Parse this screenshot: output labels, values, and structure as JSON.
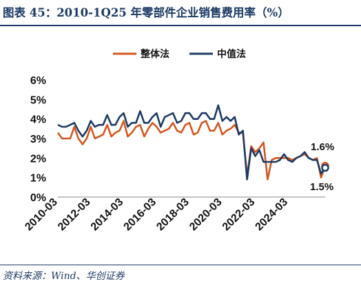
{
  "title": "图表 45：2010-1Q25 年零部件企业销售费用率（%）",
  "source": "资料来源：Wind、华创证券",
  "chart_data": {
    "type": "line",
    "title": "2010-1Q25 年零部件企业销售费用率（%）",
    "xlabel": "",
    "ylabel": "",
    "ylim": [
      0,
      6
    ],
    "yticks": [
      "0%",
      "1%",
      "2%",
      "3%",
      "4%",
      "5%",
      "6%"
    ],
    "xticks": [
      "2010-03",
      "2012-03",
      "2014-03",
      "2016-03",
      "2018-03",
      "2020-03",
      "2022-03",
      "2024-03"
    ],
    "grid": false,
    "legend_position": "top",
    "x_start": "2010-03",
    "x_frequency": "quarterly",
    "series": [
      {
        "name": "整体法",
        "color": "#d4561e",
        "values": [
          3.3,
          3.0,
          3.0,
          3.0,
          3.6,
          3.0,
          2.7,
          3.0,
          3.6,
          3.0,
          3.1,
          3.2,
          3.7,
          3.1,
          3.3,
          3.4,
          3.9,
          3.1,
          3.3,
          3.6,
          3.7,
          3.1,
          3.5,
          3.8,
          3.6,
          3.3,
          3.4,
          3.5,
          3.8,
          3.4,
          3.3,
          3.7,
          3.8,
          3.2,
          3.3,
          3.8,
          3.9,
          3.4,
          3.4,
          3.8,
          3.2,
          3.4,
          3.5,
          3.7,
          3.3,
          3.3,
          1.1,
          2.6,
          2.3,
          2.5,
          2.8,
          0.9,
          1.9,
          2.0,
          2.0,
          2.0,
          2.0,
          1.9,
          2.0,
          2.1,
          2.2,
          2.0,
          1.9,
          2.0,
          1.0,
          1.6
        ]
      },
      {
        "name": "中值法",
        "color": "#1b3a63",
        "values": [
          3.7,
          3.6,
          3.6,
          3.7,
          3.8,
          3.4,
          3.1,
          3.4,
          3.9,
          3.6,
          3.7,
          3.7,
          4.2,
          3.7,
          3.7,
          4.1,
          4.3,
          3.6,
          3.8,
          3.8,
          4.4,
          3.8,
          3.8,
          4.1,
          4.3,
          3.6,
          4.1,
          4.2,
          4.3,
          3.8,
          3.9,
          4.3,
          4.3,
          4.0,
          4.0,
          4.3,
          4.3,
          4.0,
          4.0,
          4.7,
          3.9,
          4.1,
          3.9,
          4.1,
          3.2,
          3.4,
          0.9,
          2.5,
          2.1,
          2.4,
          1.8,
          1.8,
          1.8,
          1.8,
          1.9,
          2.2,
          1.9,
          1.8,
          2.0,
          2.1,
          2.3,
          2.0,
          1.9,
          1.9,
          1.2,
          1.5
        ]
      }
    ],
    "annotations": [
      {
        "text": "1.6%",
        "series": "整体法"
      },
      {
        "text": "1.5%",
        "series": "中值法"
      }
    ]
  }
}
